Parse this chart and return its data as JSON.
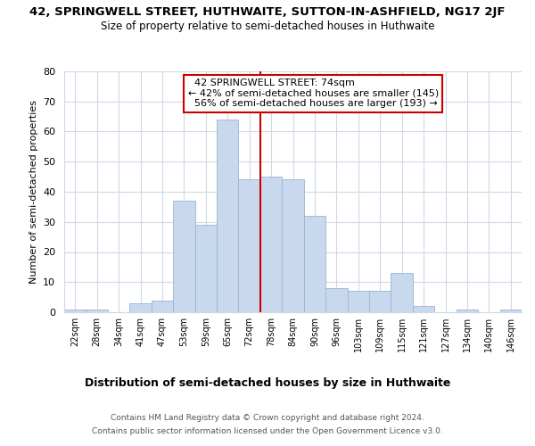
{
  "title": "42, SPRINGWELL STREET, HUTHWAITE, SUTTON-IN-ASHFIELD, NG17 2JF",
  "subtitle": "Size of property relative to semi-detached houses in Huthwaite",
  "xlabel": "Distribution of semi-detached houses by size in Huthwaite",
  "ylabel": "Number of semi-detached properties",
  "bar_labels": [
    "22sqm",
    "28sqm",
    "34sqm",
    "41sqm",
    "47sqm",
    "53sqm",
    "59sqm",
    "65sqm",
    "72sqm",
    "78sqm",
    "84sqm",
    "90sqm",
    "96sqm",
    "103sqm",
    "109sqm",
    "115sqm",
    "121sqm",
    "127sqm",
    "134sqm",
    "140sqm",
    "146sqm"
  ],
  "bar_values": [
    1,
    1,
    0,
    3,
    4,
    37,
    29,
    64,
    44,
    45,
    44,
    32,
    8,
    7,
    7,
    13,
    2,
    0,
    1,
    0,
    1
  ],
  "bar_color": "#c8d9ee",
  "bar_edge_color": "#9ab4d4",
  "property_label": "42 SPRINGWELL STREET: 74sqm",
  "pct_smaller": 42,
  "n_smaller": 145,
  "pct_larger": 56,
  "n_larger": 193,
  "vline_x_index": 8.5,
  "vline_color": "#cc0000",
  "ylim": [
    0,
    80
  ],
  "yticks": [
    0,
    10,
    20,
    30,
    40,
    50,
    60,
    70,
    80
  ],
  "annotation_box_color": "#ffffff",
  "annotation_box_edge": "#cc0000",
  "footer_line1": "Contains HM Land Registry data © Crown copyright and database right 2024.",
  "footer_line2": "Contains public sector information licensed under the Open Government Licence v3.0.",
  "bg_color": "#ffffff",
  "grid_color": "#d0d8e8"
}
